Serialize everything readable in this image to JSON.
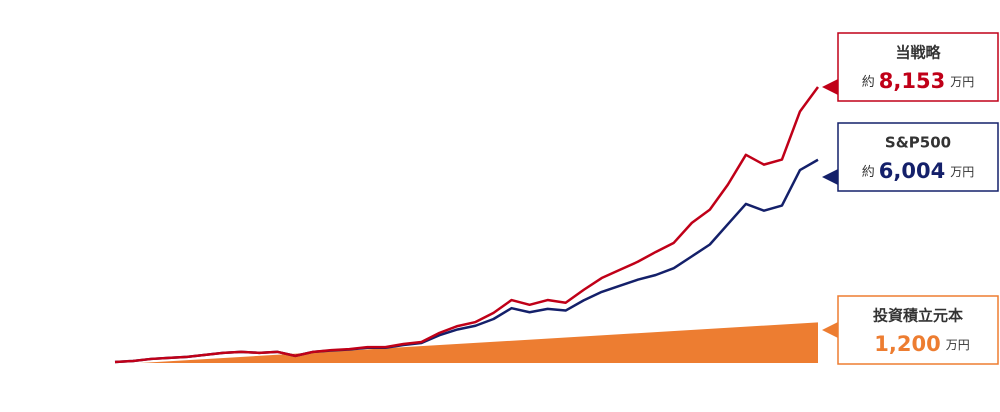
{
  "chart_data": {
    "type": "line",
    "ylim": [
      0,
      8153
    ],
    "series": [
      {
        "name": "当戦略",
        "color": "#c00018",
        "prefix": "約",
        "end_label": "8,153",
        "unit": "万円",
        "values": [
          30,
          60,
          120,
          150,
          180,
          240,
          300,
          330,
          300,
          330,
          210,
          330,
          380,
          410,
          470,
          470,
          560,
          620,
          890,
          1090,
          1210,
          1480,
          1860,
          1720,
          1860,
          1780,
          2160,
          2510,
          2750,
          2990,
          3280,
          3550,
          4140,
          4530,
          5270,
          6150,
          5860,
          6010,
          7430,
          8153
        ]
      },
      {
        "name": "S&P500",
        "color": "#14206a",
        "prefix": "約",
        "end_label": "6,004",
        "unit": "万円",
        "values": [
          30,
          60,
          120,
          150,
          180,
          240,
          300,
          330,
          300,
          330,
          210,
          330,
          370,
          400,
          450,
          450,
          530,
          590,
          820,
          990,
          1100,
          1300,
          1620,
          1500,
          1600,
          1550,
          1850,
          2100,
          2280,
          2460,
          2600,
          2800,
          3150,
          3500,
          4100,
          4700,
          4500,
          4650,
          5700,
          6004
        ]
      },
      {
        "name": "投資積立元本",
        "color": "#ed7d31",
        "type": "area",
        "end_label": "1,200",
        "unit": "万円",
        "values": [
          0,
          1200
        ]
      }
    ]
  }
}
